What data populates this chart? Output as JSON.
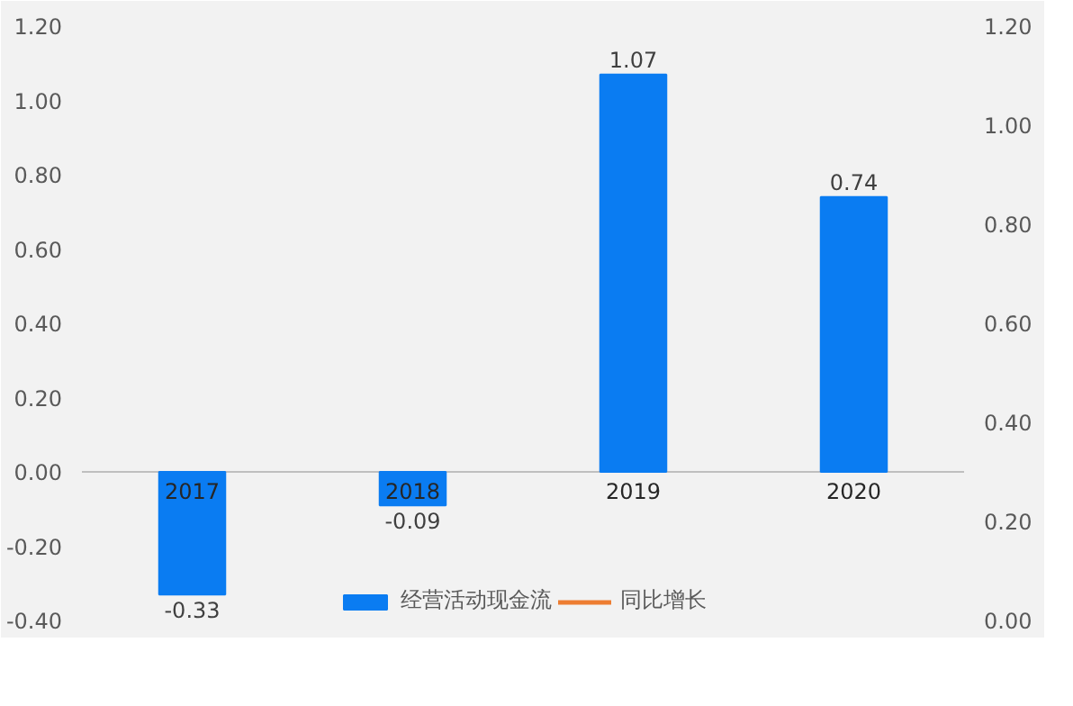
{
  "chart_data": {
    "type": "bar",
    "categories": [
      "2017",
      "2018",
      "2019",
      "2020"
    ],
    "series": [
      {
        "name": "经营活动现金流",
        "color": "#0a7cf2",
        "values": [
          -0.33,
          -0.09,
          1.07,
          0.74
        ]
      },
      {
        "name": "同比增长",
        "type": "line",
        "color": "#ed7d31",
        "values": [
          null,
          null,
          null,
          null
        ]
      }
    ],
    "data_labels": true,
    "ylim": [
      -0.4,
      1.2
    ],
    "yticks": [
      {
        "value": -0.4,
        "label": "-0.40"
      },
      {
        "value": -0.2,
        "label": "-0.20"
      },
      {
        "value": 0,
        "label": "0.00"
      },
      {
        "value": 0.2,
        "label": "0.20"
      },
      {
        "value": 0.4,
        "label": "0.40"
      },
      {
        "value": 0.6,
        "label": "0.60"
      },
      {
        "value": 0.8,
        "label": "0.80"
      },
      {
        "value": 1.0,
        "label": "1.00"
      },
      {
        "value": 1.2,
        "label": "1.20"
      }
    ],
    "y2lim": [
      0,
      1.2
    ],
    "y2ticks": [
      {
        "value": 0,
        "label": "0.00"
      },
      {
        "value": 0.2,
        "label": "0.20"
      },
      {
        "value": 0.4,
        "label": "0.40"
      },
      {
        "value": 0.6,
        "label": "0.60"
      },
      {
        "value": 0.8,
        "label": "0.80"
      },
      {
        "value": 1.0,
        "label": "1.00"
      },
      {
        "value": 1.2,
        "label": "1.20"
      }
    ],
    "grid": false,
    "legend": "bottom"
  }
}
